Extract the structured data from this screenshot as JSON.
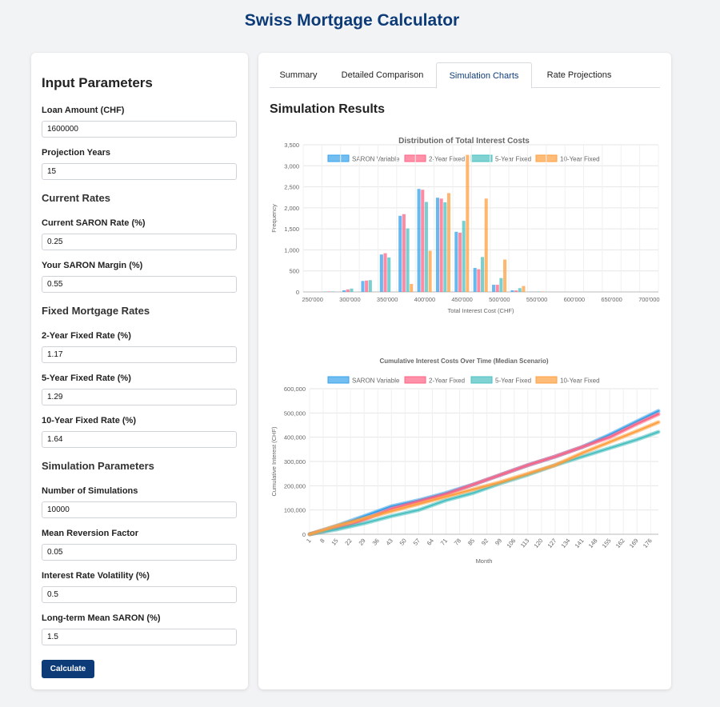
{
  "app": {
    "title": "Swiss Mortgage Calculator"
  },
  "input_panel": {
    "title": "Input Parameters",
    "loan_amount": {
      "label": "Loan Amount (CHF)",
      "value": "1600000"
    },
    "projection_years": {
      "label": "Projection Years",
      "value": "15"
    },
    "current_rates": {
      "title": "Current Rates",
      "saron_rate": {
        "label": "Current SARON Rate (%)",
        "value": "0.25"
      },
      "saron_margin": {
        "label": "Your SARON Margin (%)",
        "value": "0.55"
      }
    },
    "fixed_rates": {
      "title": "Fixed Mortgage Rates",
      "two_year": {
        "label": "2-Year Fixed Rate (%)",
        "value": "1.17"
      },
      "five_year": {
        "label": "5-Year Fixed Rate (%)",
        "value": "1.29"
      },
      "ten_year": {
        "label": "10-Year Fixed Rate (%)",
        "value": "1.64"
      }
    },
    "simulation": {
      "title": "Simulation Parameters",
      "num_simulations": {
        "label": "Number of Simulations",
        "value": "10000"
      },
      "mean_reversion": {
        "label": "Mean Reversion Factor",
        "value": "0.05"
      },
      "volatility": {
        "label": "Interest Rate Volatility (%)",
        "value": "0.5"
      },
      "long_term_mean": {
        "label": "Long-term Mean SARON (%)",
        "value": "1.5"
      }
    },
    "calculate_label": "Calculate"
  },
  "tabs": [
    {
      "label": "Summary",
      "active": false
    },
    {
      "label": "Detailed Comparison",
      "active": false
    },
    {
      "label": "Simulation Charts",
      "active": true
    },
    {
      "label": "Rate Projections",
      "active": false
    }
  ],
  "results_title": "Simulation Results",
  "chart_data": [
    {
      "type": "bar",
      "title": "Distribution of Total Interest Costs",
      "xlabel": "Total Interest Cost (CHF)",
      "ylabel": "Frequency",
      "ylim": [
        0,
        3500
      ],
      "yticks": [
        0,
        500,
        1000,
        1500,
        2000,
        2500,
        3000,
        3500
      ],
      "ytick_labels": [
        "0",
        "500",
        "1,000",
        "1,500",
        "2,000",
        "2,500",
        "3,000",
        "3,500"
      ],
      "categories": [
        "250'000",
        "275'000",
        "300'000",
        "325'000",
        "350'000",
        "375'000",
        "400'000",
        "425'000",
        "450'000",
        "475'000",
        "500'000",
        "525'000",
        "550'000",
        "575'000",
        "600'000",
        "625'000",
        "650'000",
        "675'000",
        "700'000"
      ],
      "category_labels_shown": [
        "250'000",
        "300'000",
        "350'000",
        "400'000",
        "450'000",
        "500'000",
        "550'000",
        "600'000",
        "650'000",
        "700'000"
      ],
      "legend_position": "top",
      "grid": true,
      "series": [
        {
          "name": "SARON Variable",
          "color": "#36a2eb",
          "values": [
            0,
            5,
            40,
            260,
            890,
            1810,
            2450,
            2240,
            1430,
            570,
            170,
            40,
            5,
            0,
            0,
            0,
            0,
            0,
            0
          ]
        },
        {
          "name": "2-Year Fixed",
          "color": "#ff6384",
          "values": [
            0,
            10,
            60,
            270,
            920,
            1850,
            2430,
            2220,
            1410,
            540,
            170,
            35,
            5,
            0,
            0,
            0,
            0,
            0,
            0
          ]
        },
        {
          "name": "5-Year Fixed",
          "color": "#4bc0c0",
          "values": [
            0,
            10,
            80,
            280,
            820,
            1510,
            2140,
            2130,
            1690,
            830,
            330,
            90,
            10,
            0,
            0,
            0,
            0,
            0,
            0
          ]
        },
        {
          "name": "10-Year Fixed",
          "color": "#ff9f40",
          "values": [
            0,
            0,
            0,
            0,
            0,
            190,
            980,
            2350,
            3260,
            2220,
            770,
            140,
            10,
            0,
            0,
            0,
            0,
            0,
            0
          ]
        }
      ]
    },
    {
      "type": "line",
      "title": "Cumulative Interest Costs Over Time (Median Scenario)",
      "xlabel": "Month",
      "ylabel": "Cumulative Interest (CHF)",
      "ylim": [
        0,
        600000
      ],
      "yticks": [
        0,
        100000,
        200000,
        300000,
        400000,
        500000,
        600000
      ],
      "ytick_labels": [
        "0",
        "100,000",
        "200,000",
        "300,000",
        "400,000",
        "500,000",
        "600,000"
      ],
      "x_range": [
        1,
        180
      ],
      "x_tick_labels": [
        "1",
        "8",
        "15",
        "22",
        "29",
        "36",
        "43",
        "50",
        "57",
        "64",
        "71",
        "78",
        "85",
        "92",
        "99",
        "106",
        "113",
        "120",
        "127",
        "134",
        "141",
        "148",
        "155",
        "162",
        "169",
        "176"
      ],
      "legend_position": "top",
      "grid": true,
      "series": [
        {
          "name": "SARON Variable",
          "color": "#36a2eb",
          "points": [
            [
              1,
              0
            ],
            [
              15,
              35000
            ],
            [
              29,
              75000
            ],
            [
              43,
              115000
            ],
            [
              57,
              140000
            ],
            [
              71,
              170000
            ],
            [
              85,
              205000
            ],
            [
              99,
              245000
            ],
            [
              113,
              285000
            ],
            [
              127,
              320000
            ],
            [
              141,
              360000
            ],
            [
              155,
              410000
            ],
            [
              169,
              465000
            ],
            [
              180,
              508000
            ]
          ]
        },
        {
          "name": "2-Year Fixed",
          "color": "#ff6384",
          "points": [
            [
              1,
              0
            ],
            [
              15,
              25000
            ],
            [
              22,
              40000
            ],
            [
              29,
              60000
            ],
            [
              43,
              105000
            ],
            [
              57,
              135000
            ],
            [
              71,
              165000
            ],
            [
              85,
              205000
            ],
            [
              99,
              245000
            ],
            [
              113,
              285000
            ],
            [
              127,
              320000
            ],
            [
              141,
              360000
            ],
            [
              155,
              400000
            ],
            [
              169,
              455000
            ],
            [
              180,
              495000
            ]
          ]
        },
        {
          "name": "5-Year Fixed",
          "color": "#4bc0c0",
          "points": [
            [
              1,
              0
            ],
            [
              15,
              20000
            ],
            [
              29,
              45000
            ],
            [
              43,
              75000
            ],
            [
              57,
              100000
            ],
            [
              71,
              140000
            ],
            [
              85,
              170000
            ],
            [
              99,
              210000
            ],
            [
              113,
              245000
            ],
            [
              127,
              285000
            ],
            [
              141,
              320000
            ],
            [
              155,
              355000
            ],
            [
              169,
              390000
            ],
            [
              180,
              422000
            ]
          ]
        },
        {
          "name": "10-Year Fixed",
          "color": "#ff9f40",
          "points": [
            [
              1,
              0
            ],
            [
              15,
              35000
            ],
            [
              29,
              65000
            ],
            [
              43,
              95000
            ],
            [
              57,
              125000
            ],
            [
              71,
              155000
            ],
            [
              85,
              185000
            ],
            [
              99,
              215000
            ],
            [
              113,
              250000
            ],
            [
              127,
              285000
            ],
            [
              141,
              335000
            ],
            [
              155,
              380000
            ],
            [
              169,
              425000
            ],
            [
              180,
              462000
            ]
          ]
        }
      ]
    }
  ]
}
